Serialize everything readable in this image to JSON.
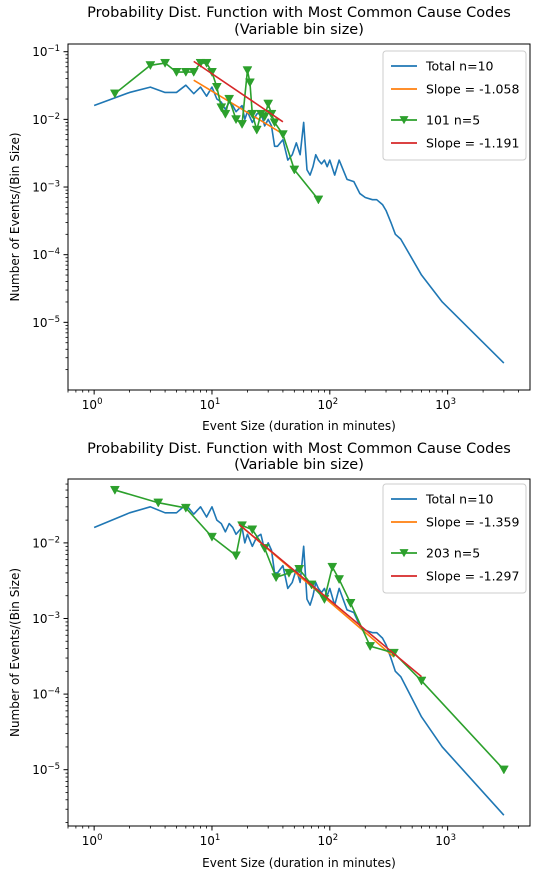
{
  "chart_data": [
    {
      "type": "line",
      "title": "Probability Dist. Function with Most Common Cause Codes",
      "subtitle": "(Variable bin size)",
      "xlabel": "Event Size (duration in minutes)",
      "ylabel": "Number of Events/(Bin Size)",
      "xscale": "log",
      "yscale": "log",
      "xlim": [
        0.6,
        5000
      ],
      "ylim": [
        1e-06,
        0.13
      ],
      "xticks": [
        {
          "base": "10",
          "exp": "0",
          "v": 1
        },
        {
          "base": "10",
          "exp": "1",
          "v": 10
        },
        {
          "base": "10",
          "exp": "2",
          "v": 100
        },
        {
          "base": "10",
          "exp": "3",
          "v": 1000
        }
      ],
      "yticks": [
        {
          "base": "10",
          "exp": "−5",
          "v": 1e-05
        },
        {
          "base": "10",
          "exp": "−4",
          "v": 0.0001
        },
        {
          "base": "10",
          "exp": "−3",
          "v": 0.001
        },
        {
          "base": "10",
          "exp": "−2",
          "v": 0.01
        },
        {
          "base": "10",
          "exp": "−1",
          "v": 0.1
        }
      ],
      "legend_position": "top-right",
      "series": [
        {
          "name": "Total n=10",
          "color": "#1f77b4",
          "marker": "none",
          "x": [
            1,
            2,
            3,
            4,
            5,
            6,
            7,
            8,
            9,
            10,
            11,
            12,
            13,
            14,
            15,
            16,
            18,
            19,
            20,
            22,
            24,
            26,
            28,
            30,
            32,
            34,
            36,
            38,
            40,
            44,
            48,
            52,
            56,
            60,
            64,
            68,
            72,
            76,
            80,
            85,
            90,
            95,
            100,
            110,
            120,
            140,
            160,
            180,
            200,
            230,
            250,
            280,
            300,
            330,
            360,
            400,
            600,
            900,
            3000
          ],
          "y": [
            0.016,
            0.025,
            0.03,
            0.025,
            0.025,
            0.032,
            0.024,
            0.03,
            0.022,
            0.03,
            0.02,
            0.018,
            0.014,
            0.018,
            0.016,
            0.013,
            0.016,
            0.01,
            0.013,
            0.009,
            0.012,
            0.013,
            0.008,
            0.01,
            0.008,
            0.004,
            0.004,
            0.0045,
            0.005,
            0.0025,
            0.003,
            0.0045,
            0.003,
            0.009,
            0.0018,
            0.0015,
            0.002,
            0.003,
            0.0025,
            0.0022,
            0.0025,
            0.002,
            0.0025,
            0.0015,
            0.0025,
            0.0013,
            0.0012,
            0.0008,
            0.0007,
            0.00065,
            0.00065,
            0.00055,
            0.00045,
            0.0003,
            0.0002,
            0.00017,
            5e-05,
            2e-05,
            2.5e-06
          ]
        },
        {
          "name": "Slope = -1.058",
          "color": "#ff7f0e",
          "marker": "none",
          "x": [
            7,
            40
          ],
          "y": [
            0.038,
            0.0061
          ]
        },
        {
          "name": "101 n=5",
          "color": "#2ca02c",
          "marker": "triangle-down",
          "x": [
            1.5,
            3,
            4,
            5,
            6,
            7,
            8,
            9,
            10,
            11,
            12,
            13,
            14,
            16,
            18,
            20,
            21,
            22,
            24,
            26,
            28,
            30,
            32,
            34,
            40,
            50,
            80
          ],
          "y": [
            0.024,
            0.063,
            0.068,
            0.05,
            0.05,
            0.05,
            0.068,
            0.068,
            0.05,
            0.03,
            0.015,
            0.012,
            0.02,
            0.01,
            0.0085,
            0.053,
            0.035,
            0.012,
            0.007,
            0.012,
            0.011,
            0.017,
            0.012,
            0.009,
            0.006,
            0.0018,
            0.00065
          ]
        },
        {
          "name": "Slope = -1.191",
          "color": "#d62728",
          "marker": "none",
          "x": [
            7,
            40
          ],
          "y": [
            0.072,
            0.0092
          ]
        }
      ]
    },
    {
      "type": "line",
      "title": "Probability Dist. Function with Most Common Cause Codes",
      "subtitle": "(Variable bin size)",
      "xlabel": "Event Size (duration in minutes)",
      "ylabel": "Number of Events/(Bin Size)",
      "xscale": "log",
      "yscale": "log",
      "xlim": [
        0.6,
        5000
      ],
      "ylim": [
        1.8e-06,
        0.07
      ],
      "xticks": [
        {
          "base": "10",
          "exp": "0",
          "v": 1
        },
        {
          "base": "10",
          "exp": "1",
          "v": 10
        },
        {
          "base": "10",
          "exp": "2",
          "v": 100
        },
        {
          "base": "10",
          "exp": "3",
          "v": 1000
        }
      ],
      "yticks": [
        {
          "base": "10",
          "exp": "−5",
          "v": 1e-05
        },
        {
          "base": "10",
          "exp": "−4",
          "v": 0.0001
        },
        {
          "base": "10",
          "exp": "−3",
          "v": 0.001
        },
        {
          "base": "10",
          "exp": "−2",
          "v": 0.01
        }
      ],
      "legend_position": "top-right",
      "series": [
        {
          "name": "Total n=10",
          "color": "#1f77b4",
          "marker": "none",
          "x": [
            1,
            2,
            3,
            4,
            5,
            6,
            7,
            8,
            9,
            10,
            11,
            12,
            13,
            14,
            15,
            16,
            18,
            19,
            20,
            22,
            24,
            26,
            28,
            30,
            32,
            34,
            36,
            38,
            40,
            44,
            48,
            52,
            56,
            60,
            64,
            68,
            72,
            76,
            80,
            85,
            90,
            95,
            100,
            110,
            120,
            140,
            160,
            180,
            200,
            230,
            250,
            280,
            300,
            330,
            360,
            400,
            600,
            900,
            3000
          ],
          "y": [
            0.016,
            0.025,
            0.03,
            0.025,
            0.025,
            0.032,
            0.024,
            0.03,
            0.022,
            0.03,
            0.02,
            0.018,
            0.014,
            0.018,
            0.016,
            0.013,
            0.016,
            0.01,
            0.013,
            0.009,
            0.012,
            0.013,
            0.008,
            0.01,
            0.008,
            0.004,
            0.004,
            0.0045,
            0.005,
            0.0025,
            0.003,
            0.0045,
            0.003,
            0.009,
            0.0018,
            0.0015,
            0.002,
            0.003,
            0.0025,
            0.0022,
            0.0025,
            0.002,
            0.0025,
            0.0015,
            0.0025,
            0.0013,
            0.0012,
            0.0008,
            0.0007,
            0.00065,
            0.00065,
            0.00055,
            0.00045,
            0.0003,
            0.0002,
            0.00017,
            5e-05,
            2e-05,
            2.5e-06
          ]
        },
        {
          "name": "Slope = -1.359",
          "color": "#ff7f0e",
          "marker": "none",
          "x": [
            17,
            350
          ],
          "y": [
            0.0175,
            0.00031
          ]
        },
        {
          "name": "203 n=5",
          "color": "#2ca02c",
          "marker": "triangle-down",
          "x": [
            1.5,
            3.5,
            6,
            10,
            16,
            18,
            22,
            28,
            35,
            45,
            55,
            70,
            90,
            105,
            120,
            150,
            220,
            350,
            600,
            3000
          ],
          "y": [
            0.05,
            0.034,
            0.029,
            0.012,
            0.0068,
            0.017,
            0.015,
            0.0085,
            0.0035,
            0.004,
            0.0045,
            0.0028,
            0.0018,
            0.0048,
            0.0033,
            0.0016,
            0.00043,
            0.00035,
            0.00015,
            1e-05
          ]
        },
        {
          "name": "Slope = -1.297",
          "color": "#d62728",
          "marker": "none",
          "x": [
            17,
            600
          ],
          "y": [
            0.0175,
            0.00017
          ]
        }
      ]
    }
  ]
}
